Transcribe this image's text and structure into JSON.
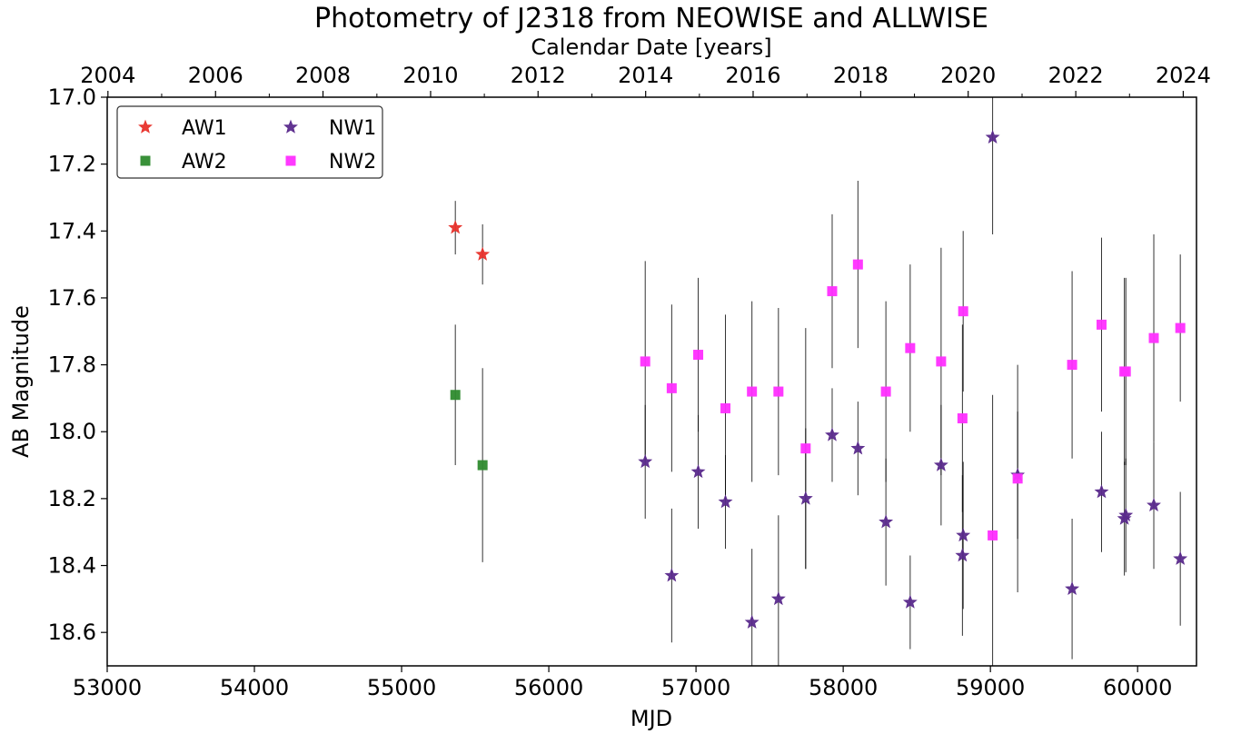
{
  "chart_data": {
    "type": "scatter",
    "title": "Photometry of J2318 from NEOWISE and ALLWISE",
    "xlabel": "MJD",
    "ylabel": "AB Magnitude",
    "top_xlabel": "Calendar Date [years]",
    "xlim": [
      53000,
      60400
    ],
    "ylim": [
      18.7,
      17.0
    ],
    "y_inverted": true,
    "x_ticks": [
      53000,
      54000,
      55000,
      56000,
      57000,
      58000,
      59000,
      60000
    ],
    "x_tick_labels": [
      "53000",
      "54000",
      "55000",
      "56000",
      "57000",
      "58000",
      "59000",
      "60000"
    ],
    "y_ticks": [
      17.0,
      17.2,
      17.4,
      17.6,
      17.8,
      18.0,
      18.2,
      18.4,
      18.6
    ],
    "y_tick_labels": [
      "17.0",
      "17.2",
      "17.4",
      "17.6",
      "17.8",
      "18.0",
      "18.2",
      "18.4",
      "18.6"
    ],
    "top_ticks": [
      {
        "label": "2004",
        "mjd": 53005
      },
      {
        "label": "2006",
        "mjd": 53736
      },
      {
        "label": "2008",
        "mjd": 54466
      },
      {
        "label": "2010",
        "mjd": 55197
      },
      {
        "label": "2012",
        "mjd": 55927
      },
      {
        "label": "2014",
        "mjd": 56658
      },
      {
        "label": "2016",
        "mjd": 57388
      },
      {
        "label": "2018",
        "mjd": 58119
      },
      {
        "label": "2020",
        "mjd": 58849
      },
      {
        "label": "2022",
        "mjd": 59580
      },
      {
        "label": "2024",
        "mjd": 60310
      }
    ],
    "top_minor_ticks_mjd": [
      53370,
      54101,
      54832,
      55562,
      56293,
      57023,
      57754,
      58484,
      59215,
      59945
    ],
    "grid": false,
    "legend_position": "top-left",
    "legend_columns": 2,
    "series": [
      {
        "name": "AW1",
        "marker": "star",
        "color": "#e8322b",
        "points": [
          {
            "x": 55365,
            "y": 17.39,
            "err": 0.08
          },
          {
            "x": 55550,
            "y": 17.47,
            "err": 0.09
          }
        ]
      },
      {
        "name": "AW2",
        "marker": "square",
        "color": "#2e8b2e",
        "points": [
          {
            "x": 55365,
            "y": 17.89,
            "err": 0.21
          },
          {
            "x": 55550,
            "y": 18.1,
            "err": 0.29
          }
        ]
      },
      {
        "name": "NW1",
        "marker": "star",
        "color": "#5a2a8c",
        "points": [
          {
            "x": 56655,
            "y": 18.09,
            "err": 0.17
          },
          {
            "x": 56835,
            "y": 18.43,
            "err": 0.2
          },
          {
            "x": 57015,
            "y": 18.12,
            "err": 0.17
          },
          {
            "x": 57200,
            "y": 18.21,
            "err": 0.14
          },
          {
            "x": 57380,
            "y": 18.57,
            "err": 0.22
          },
          {
            "x": 57560,
            "y": 18.5,
            "err": 0.25
          },
          {
            "x": 57745,
            "y": 18.2,
            "err": 0.21
          },
          {
            "x": 57925,
            "y": 18.01,
            "err": 0.14
          },
          {
            "x": 58100,
            "y": 18.05,
            "err": 0.14
          },
          {
            "x": 58290,
            "y": 18.27,
            "err": 0.19
          },
          {
            "x": 58455,
            "y": 18.51,
            "err": 0.14
          },
          {
            "x": 58665,
            "y": 18.1,
            "err": 0.18
          },
          {
            "x": 58815,
            "y": 18.31,
            "err": 0.22
          },
          {
            "x": 58810,
            "y": 18.37,
            "err": 0.24
          },
          {
            "x": 59015,
            "y": 17.12,
            "err": 0.29
          },
          {
            "x": 59185,
            "y": 18.13,
            "err": 0.19
          },
          {
            "x": 59555,
            "y": 18.47,
            "err": 0.21
          },
          {
            "x": 59755,
            "y": 18.18,
            "err": 0.18
          },
          {
            "x": 59910,
            "y": 18.26,
            "err": 0.17
          },
          {
            "x": 59920,
            "y": 18.25,
            "err": 0.17
          },
          {
            "x": 60110,
            "y": 18.22,
            "err": 0.19
          },
          {
            "x": 60290,
            "y": 18.38,
            "err": 0.2
          }
        ]
      },
      {
        "name": "NW2",
        "marker": "square",
        "color": "#ff2eff",
        "points": [
          {
            "x": 56655,
            "y": 17.79,
            "err": 0.3
          },
          {
            "x": 56835,
            "y": 17.87,
            "err": 0.25
          },
          {
            "x": 57015,
            "y": 17.77,
            "err": 0.23
          },
          {
            "x": 57200,
            "y": 17.93,
            "err": 0.28
          },
          {
            "x": 57380,
            "y": 17.88,
            "err": 0.27
          },
          {
            "x": 57560,
            "y": 17.88,
            "err": 0.25
          },
          {
            "x": 57745,
            "y": 18.05,
            "err": 0.36
          },
          {
            "x": 57925,
            "y": 17.58,
            "err": 0.23
          },
          {
            "x": 58100,
            "y": 17.5,
            "err": 0.25
          },
          {
            "x": 58290,
            "y": 17.88,
            "err": 0.27
          },
          {
            "x": 58455,
            "y": 17.75,
            "err": 0.25
          },
          {
            "x": 58665,
            "y": 17.79,
            "err": 0.34
          },
          {
            "x": 58815,
            "y": 17.64,
            "err": 0.24
          },
          {
            "x": 58810,
            "y": 17.96,
            "err": 0.28
          },
          {
            "x": 59015,
            "y": 18.31,
            "err": 0.42
          },
          {
            "x": 59185,
            "y": 18.14,
            "err": 0.34
          },
          {
            "x": 59555,
            "y": 17.8,
            "err": 0.28
          },
          {
            "x": 59755,
            "y": 17.68,
            "err": 0.26
          },
          {
            "x": 59910,
            "y": 17.82,
            "err": 0.28
          },
          {
            "x": 59920,
            "y": 17.82,
            "err": 0.28
          },
          {
            "x": 60110,
            "y": 17.72,
            "err": 0.31
          },
          {
            "x": 60290,
            "y": 17.69,
            "err": 0.22
          }
        ]
      }
    ]
  }
}
